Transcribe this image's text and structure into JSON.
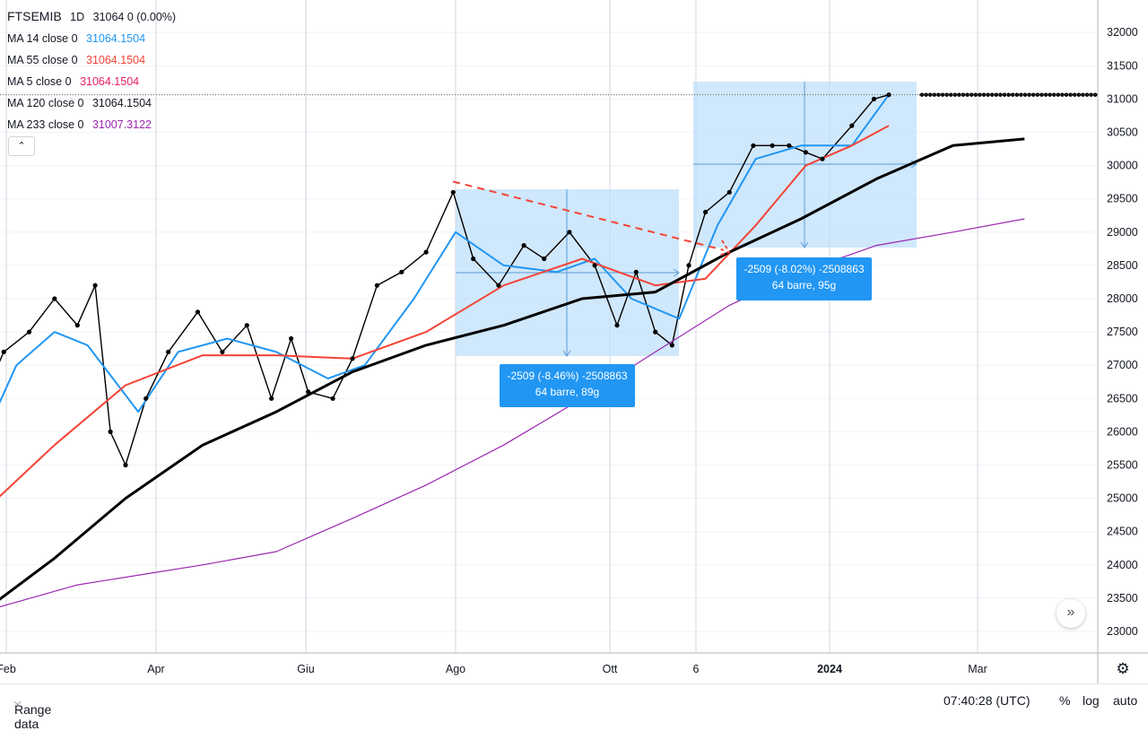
{
  "legend": {
    "symbol": "FTSEMIB",
    "interval": "1D",
    "price": "31064",
    "change": "0 (0.00%)",
    "mas": [
      {
        "label": "MA 14 close 0",
        "value": "31064.1504",
        "color": "#2196f3"
      },
      {
        "label": "MA 55 close 0",
        "value": "31064.1504",
        "color": "#f44336"
      },
      {
        "label": "MA 5 close 0",
        "value": "31064.1504",
        "color": "#e91e63"
      },
      {
        "label": "MA 120 close 0",
        "value": "31064.1504",
        "color": "#000000"
      },
      {
        "label": "MA 233 close 0",
        "value": "31007.3122",
        "color": "#9c27b0"
      }
    ]
  },
  "collapse_icon": "chevron-up-icon",
  "scroll_icon": "double-chevron-right-icon",
  "bottom": {
    "range_label": "Range data",
    "time": "07:40:28 (UTC)",
    "percent": "%",
    "log": "log",
    "auto": "auto"
  },
  "measures": [
    {
      "text1": "-2509 (-8.46%) -2508863",
      "text2": "64 barre, 89g"
    },
    {
      "text1": "-2509 (-8.02%) -2508863",
      "text2": "64 barre, 95g"
    }
  ],
  "chart_data": {
    "type": "line",
    "title": "FTSEMIB 1D",
    "x_ticks": [
      "Feb",
      "Apr",
      "Giu",
      "Ago",
      "Ott",
      "6",
      "2024",
      "Mar"
    ],
    "y_ticks": [
      23000,
      23500,
      24000,
      24500,
      25000,
      25500,
      26000,
      26500,
      27000,
      27500,
      28000,
      28500,
      29000,
      29500,
      30000,
      30500,
      31000,
      31500,
      32000
    ],
    "ylim": [
      22800,
      32300
    ],
    "last_price": 31064,
    "series": [
      {
        "name": "FTSEMIB",
        "color": "#000000",
        "x": [
          "2023-01-23",
          "2023-01-31",
          "2023-02-10",
          "2023-02-20",
          "2023-03-01",
          "2023-03-08",
          "2023-03-14",
          "2023-03-20",
          "2023-03-28",
          "2023-04-06",
          "2023-04-18",
          "2023-04-28",
          "2023-05-08",
          "2023-05-18",
          "2023-05-26",
          "2023-06-02",
          "2023-06-12",
          "2023-06-20",
          "2023-06-30",
          "2023-07-10",
          "2023-07-20",
          "2023-07-31",
          "2023-08-08",
          "2023-08-18",
          "2023-08-28",
          "2023-09-05",
          "2023-09-15",
          "2023-09-25",
          "2023-10-04",
          "2023-10-12",
          "2023-10-20",
          "2023-10-27",
          "2023-11-03",
          "2023-11-10",
          "2023-11-20",
          "2023-11-30",
          "2023-12-08",
          "2023-12-15",
          "2023-12-22",
          "2023-12-29",
          "2024-01-10",
          "2024-01-19",
          "2024-01-25"
        ],
        "values": [
          26500,
          27200,
          27500,
          28000,
          27600,
          28200,
          26000,
          25500,
          26500,
          27200,
          27800,
          27200,
          27600,
          26500,
          27400,
          26600,
          26500,
          27100,
          28200,
          28400,
          28700,
          29600,
          28600,
          28200,
          28800,
          28600,
          29000,
          28500,
          27600,
          28400,
          27500,
          27300,
          28500,
          29300,
          29600,
          30300,
          30300,
          30300,
          30200,
          30100,
          30600,
          31000,
          31064
        ]
      },
      {
        "name": "MA 14",
        "color": "#2196f3",
        "x": [
          "2023-01-23",
          "2023-02-05",
          "2023-02-20",
          "2023-03-05",
          "2023-03-25",
          "2023-04-10",
          "2023-04-30",
          "2023-05-20",
          "2023-06-10",
          "2023-06-25",
          "2023-07-15",
          "2023-08-01",
          "2023-08-20",
          "2023-09-10",
          "2023-09-25",
          "2023-10-10",
          "2023-10-30",
          "2023-11-15",
          "2023-12-01",
          "2023-12-20",
          "2024-01-10",
          "2024-01-25"
        ],
        "values": [
          25900,
          27000,
          27500,
          27300,
          26300,
          27200,
          27400,
          27200,
          26800,
          27000,
          28000,
          29000,
          28500,
          28400,
          28600,
          28000,
          27700,
          29100,
          30100,
          30300,
          30300,
          31064
        ]
      },
      {
        "name": "MA 55",
        "color": "#f44336",
        "x": [
          "2023-01-23",
          "2023-02-20",
          "2023-03-20",
          "2023-04-20",
          "2023-05-20",
          "2023-06-20",
          "2023-07-20",
          "2023-08-20",
          "2023-09-20",
          "2023-10-20",
          "2023-11-10",
          "2023-12-01",
          "2023-12-22",
          "2024-01-10",
          "2024-01-25"
        ],
        "values": [
          24800,
          25800,
          26700,
          27150,
          27150,
          27100,
          27500,
          28200,
          28600,
          28200,
          28300,
          29100,
          30000,
          30300,
          30600
        ]
      },
      {
        "name": "MA 120",
        "color": "#000000",
        "x": [
          "2023-01-23",
          "2023-02-20",
          "2023-03-20",
          "2023-04-20",
          "2023-05-20",
          "2023-06-20",
          "2023-07-20",
          "2023-08-20",
          "2023-09-20",
          "2023-10-20",
          "2023-11-20",
          "2023-12-20",
          "2024-01-20",
          "2024-02-20",
          "2024-03-20"
        ],
        "values": [
          23300,
          24100,
          25000,
          25800,
          26300,
          26900,
          27300,
          27600,
          28000,
          28100,
          28700,
          29200,
          29800,
          30300,
          30400
        ]
      },
      {
        "name": "MA 233",
        "color": "#9c27b0",
        "x": [
          "2023-01-23",
          "2023-03-01",
          "2023-04-20",
          "2023-05-20",
          "2023-06-20",
          "2023-07-20",
          "2023-08-20",
          "2023-09-20",
          "2023-10-20",
          "2023-11-20",
          "2023-12-20",
          "2024-01-20",
          "2024-02-20",
          "2024-03-20"
        ],
        "values": [
          23300,
          23700,
          24000,
          24200,
          24700,
          25200,
          25800,
          26500,
          27200,
          27900,
          28400,
          28800,
          29000,
          29200
        ]
      }
    ]
  }
}
